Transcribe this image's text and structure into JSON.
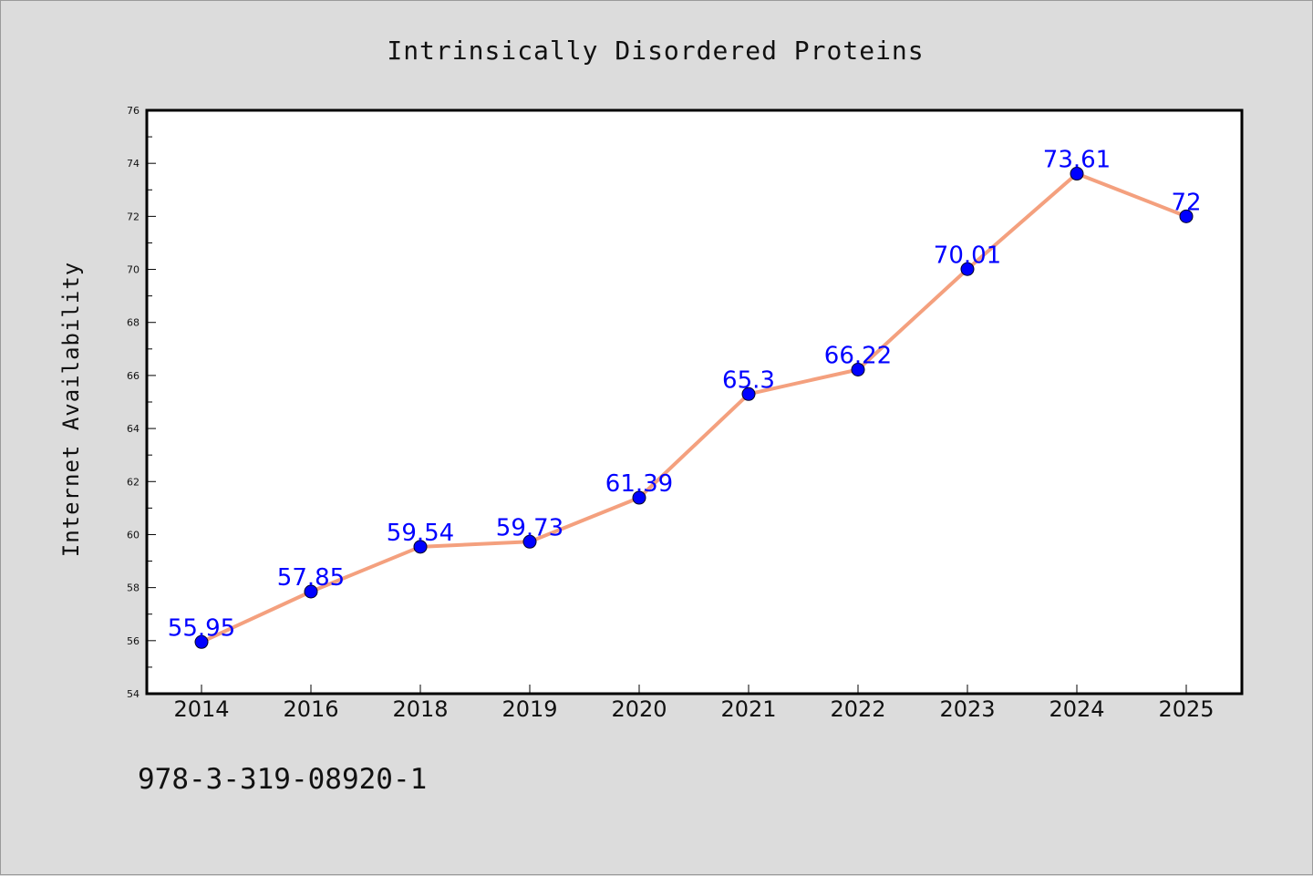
{
  "chart_data": {
    "type": "line",
    "title": "Intrinsically Disordered Proteins",
    "ylabel": "Internet Availability",
    "xlabel": "",
    "categories": [
      "2014",
      "2016",
      "2018",
      "2019",
      "2020",
      "2021",
      "2022",
      "2023",
      "2024",
      "2025"
    ],
    "values": [
      55.95,
      57.85,
      59.54,
      59.73,
      61.39,
      65.3,
      66.22,
      70.01,
      73.61,
      72
    ],
    "data_labels": [
      "55.95",
      "57.85",
      "59.54",
      "59.73",
      "61.39",
      "65.3",
      "66.22",
      "70.01",
      "73.61",
      "72"
    ],
    "ylim": [
      54,
      76
    ],
    "yticks": [
      54,
      56,
      58,
      60,
      62,
      64,
      66,
      68,
      70,
      72,
      74,
      76
    ],
    "grid": false,
    "legend": "none",
    "line_color": "#f4a07e",
    "marker_color": "#0000ff",
    "label_color": "#0000ff"
  },
  "footnote": "978-3-319-08920-1"
}
